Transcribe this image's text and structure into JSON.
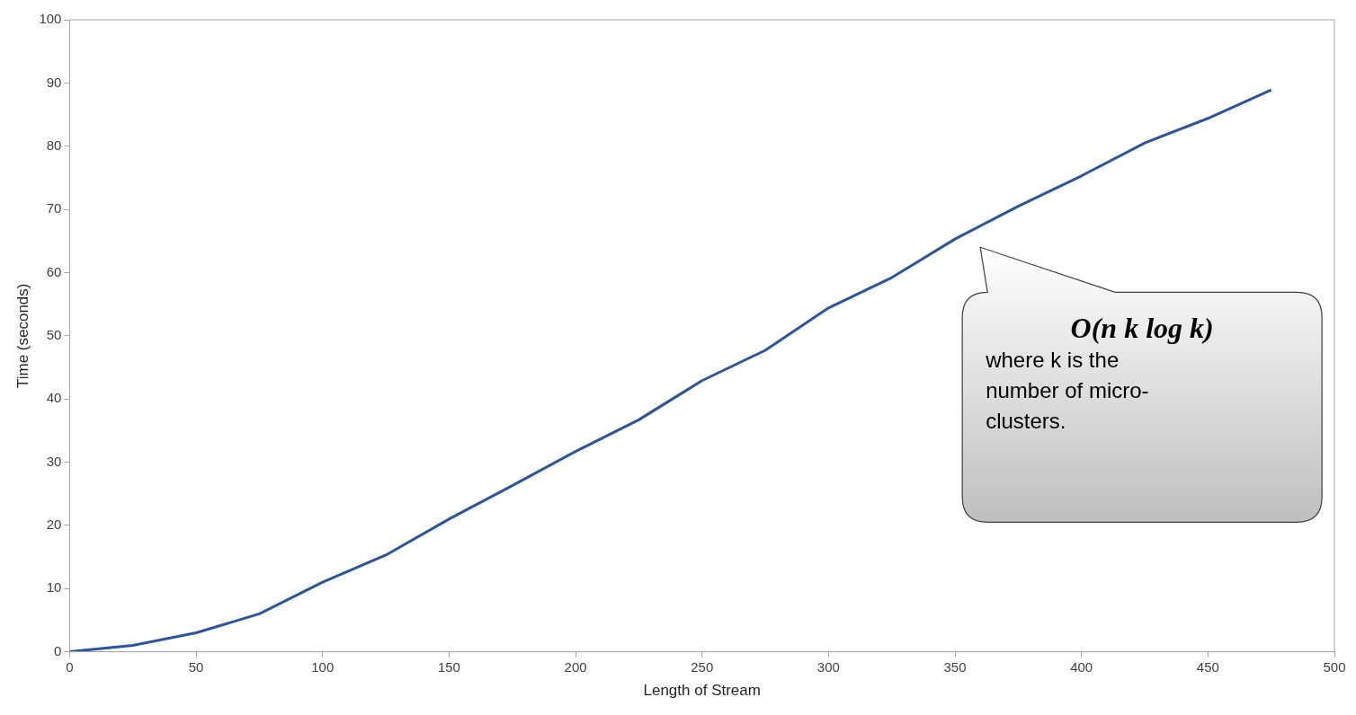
{
  "chart_data": {
    "type": "line",
    "xlabel": "Length of Stream",
    "ylabel": "Time (seconds)",
    "x": [
      0,
      25,
      50,
      75,
      100,
      125,
      150,
      175,
      200,
      225,
      250,
      275,
      300,
      325,
      350,
      375,
      400,
      425,
      450,
      475
    ],
    "series": [
      {
        "color": "#2f5597",
        "values": [
          0,
          1,
          3,
          6,
          11,
          15.3,
          21,
          26.3,
          31.7,
          36.7,
          42.9,
          47.7,
          54.4,
          59.2,
          65.3,
          70.5,
          75.3,
          80.5,
          84.4,
          88.9
        ]
      }
    ],
    "xlim": [
      0,
      500
    ],
    "xticks": [
      0,
      50,
      100,
      150,
      200,
      250,
      300,
      350,
      400,
      450,
      500
    ],
    "ylim": [
      0,
      100
    ],
    "yticks": [
      0,
      10,
      20,
      30,
      40,
      50,
      60,
      70,
      80,
      90,
      100
    ],
    "grid": false,
    "legend": false,
    "marker": "none",
    "line_style": "solid",
    "annotations": [
      "O(n k log k)",
      "where k is the number of micro-clusters."
    ]
  }
}
